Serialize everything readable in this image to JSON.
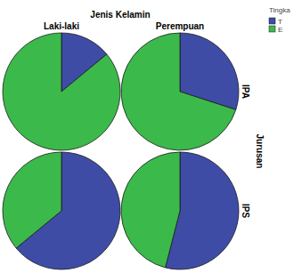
{
  "chart_data": {
    "type": "pie",
    "title": "Jenis Kelamin",
    "columns": [
      "Laki-laki",
      "Perempuan"
    ],
    "rows": [
      "IPA",
      "IPS"
    ],
    "row_title": "Jurusan",
    "legend_title": "Tingka",
    "series": [
      {
        "name": "T",
        "color": "#3f4ca6",
        "values": [
          14,
          30,
          64,
          54
        ]
      },
      {
        "name": "E",
        "color": "#3cb94b",
        "values": [
          86,
          70,
          36,
          46
        ]
      }
    ]
  }
}
